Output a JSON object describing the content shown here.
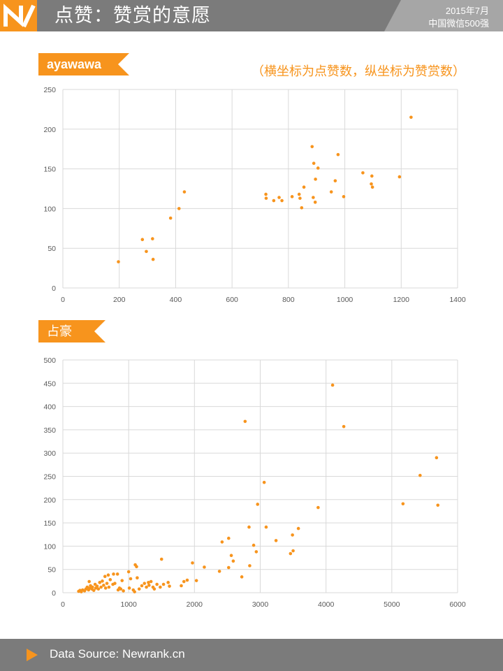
{
  "header": {
    "title": "点赞：赞赏的意愿",
    "tag_line1": "2015年7月",
    "tag_line2": "中国微信500强"
  },
  "note": "（横坐标为点赞数，纵坐标为赞赏数）",
  "footer": {
    "source": "Data Source: Newrank.cn"
  },
  "colors": {
    "accent": "#f7941d",
    "bar": "#7b7b7b",
    "grid": "#d9d9d9"
  },
  "chart_data": [
    {
      "type": "scatter",
      "label": "ayawawa",
      "xlim": [
        0,
        1400
      ],
      "ylim": [
        0,
        250
      ],
      "xticks": [
        0,
        200,
        400,
        600,
        800,
        1000,
        1200,
        1400
      ],
      "yticks": [
        0,
        50,
        100,
        150,
        200,
        250
      ],
      "grid": true,
      "points": [
        [
          197,
          33
        ],
        [
          282,
          61
        ],
        [
          296,
          46
        ],
        [
          318,
          62
        ],
        [
          320,
          36
        ],
        [
          382,
          88
        ],
        [
          412,
          100
        ],
        [
          431,
          121
        ],
        [
          720,
          118
        ],
        [
          721,
          113
        ],
        [
          748,
          110
        ],
        [
          767,
          114
        ],
        [
          777,
          110
        ],
        [
          813,
          115
        ],
        [
          838,
          118
        ],
        [
          841,
          113
        ],
        [
          847,
          101
        ],
        [
          855,
          127
        ],
        [
          884,
          178
        ],
        [
          890,
          157
        ],
        [
          888,
          114
        ],
        [
          895,
          108
        ],
        [
          896,
          137
        ],
        [
          905,
          151
        ],
        [
          952,
          121
        ],
        [
          966,
          135
        ],
        [
          976,
          168
        ],
        [
          996,
          115
        ],
        [
          1064,
          145
        ],
        [
          1094,
          131
        ],
        [
          1096,
          141
        ],
        [
          1098,
          127
        ],
        [
          1194,
          140
        ],
        [
          1235,
          215
        ]
      ]
    },
    {
      "type": "scatter",
      "label": "占豪",
      "xlim": [
        0,
        6000
      ],
      "ylim": [
        0,
        500
      ],
      "xticks": [
        0,
        1000,
        2000,
        3000,
        4000,
        5000,
        6000
      ],
      "yticks": [
        0,
        50,
        100,
        150,
        200,
        250,
        300,
        350,
        400,
        450,
        500
      ],
      "grid": true,
      "points": [
        [
          240,
          3
        ],
        [
          260,
          5
        ],
        [
          280,
          2
        ],
        [
          300,
          6
        ],
        [
          330,
          4
        ],
        [
          350,
          8
        ],
        [
          370,
          12
        ],
        [
          390,
          6
        ],
        [
          400,
          24
        ],
        [
          410,
          10
        ],
        [
          420,
          15
        ],
        [
          440,
          8
        ],
        [
          450,
          12
        ],
        [
          470,
          5
        ],
        [
          490,
          18
        ],
        [
          500,
          10
        ],
        [
          520,
          14
        ],
        [
          540,
          8
        ],
        [
          560,
          22
        ],
        [
          580,
          12
        ],
        [
          600,
          25
        ],
        [
          620,
          16
        ],
        [
          640,
          35
        ],
        [
          650,
          10
        ],
        [
          670,
          20
        ],
        [
          690,
          38
        ],
        [
          700,
          12
        ],
        [
          720,
          28
        ],
        [
          760,
          18
        ],
        [
          770,
          40
        ],
        [
          790,
          20
        ],
        [
          830,
          40
        ],
        [
          840,
          6
        ],
        [
          860,
          10
        ],
        [
          880,
          8
        ],
        [
          900,
          26
        ],
        [
          920,
          4
        ],
        [
          1000,
          45
        ],
        [
          1010,
          10
        ],
        [
          1030,
          30
        ],
        [
          1070,
          6
        ],
        [
          1090,
          2
        ],
        [
          1100,
          60
        ],
        [
          1120,
          56
        ],
        [
          1130,
          32
        ],
        [
          1160,
          8
        ],
        [
          1200,
          15
        ],
        [
          1240,
          20
        ],
        [
          1270,
          12
        ],
        [
          1300,
          22
        ],
        [
          1310,
          16
        ],
        [
          1340,
          24
        ],
        [
          1370,
          12
        ],
        [
          1390,
          8
        ],
        [
          1430,
          18
        ],
        [
          1480,
          12
        ],
        [
          1500,
          72
        ],
        [
          1530,
          18
        ],
        [
          1600,
          22
        ],
        [
          1620,
          14
        ],
        [
          1800,
          15
        ],
        [
          1840,
          24
        ],
        [
          1890,
          27
        ],
        [
          1970,
          64
        ],
        [
          2030,
          26
        ],
        [
          2150,
          55
        ],
        [
          2380,
          46
        ],
        [
          2420,
          109
        ],
        [
          2520,
          117
        ],
        [
          2520,
          54
        ],
        [
          2560,
          80
        ],
        [
          2590,
          68
        ],
        [
          2720,
          34
        ],
        [
          2770,
          368
        ],
        [
          2830,
          141
        ],
        [
          2840,
          58
        ],
        [
          2900,
          102
        ],
        [
          2940,
          88
        ],
        [
          2960,
          190
        ],
        [
          3060,
          237
        ],
        [
          3090,
          141
        ],
        [
          3240,
          112
        ],
        [
          3460,
          84
        ],
        [
          3490,
          124
        ],
        [
          3500,
          90
        ],
        [
          3580,
          138
        ],
        [
          3880,
          183
        ],
        [
          4100,
          446
        ],
        [
          4270,
          357
        ],
        [
          5170,
          191
        ],
        [
          5430,
          252
        ],
        [
          5680,
          290
        ],
        [
          5700,
          188
        ]
      ]
    }
  ]
}
